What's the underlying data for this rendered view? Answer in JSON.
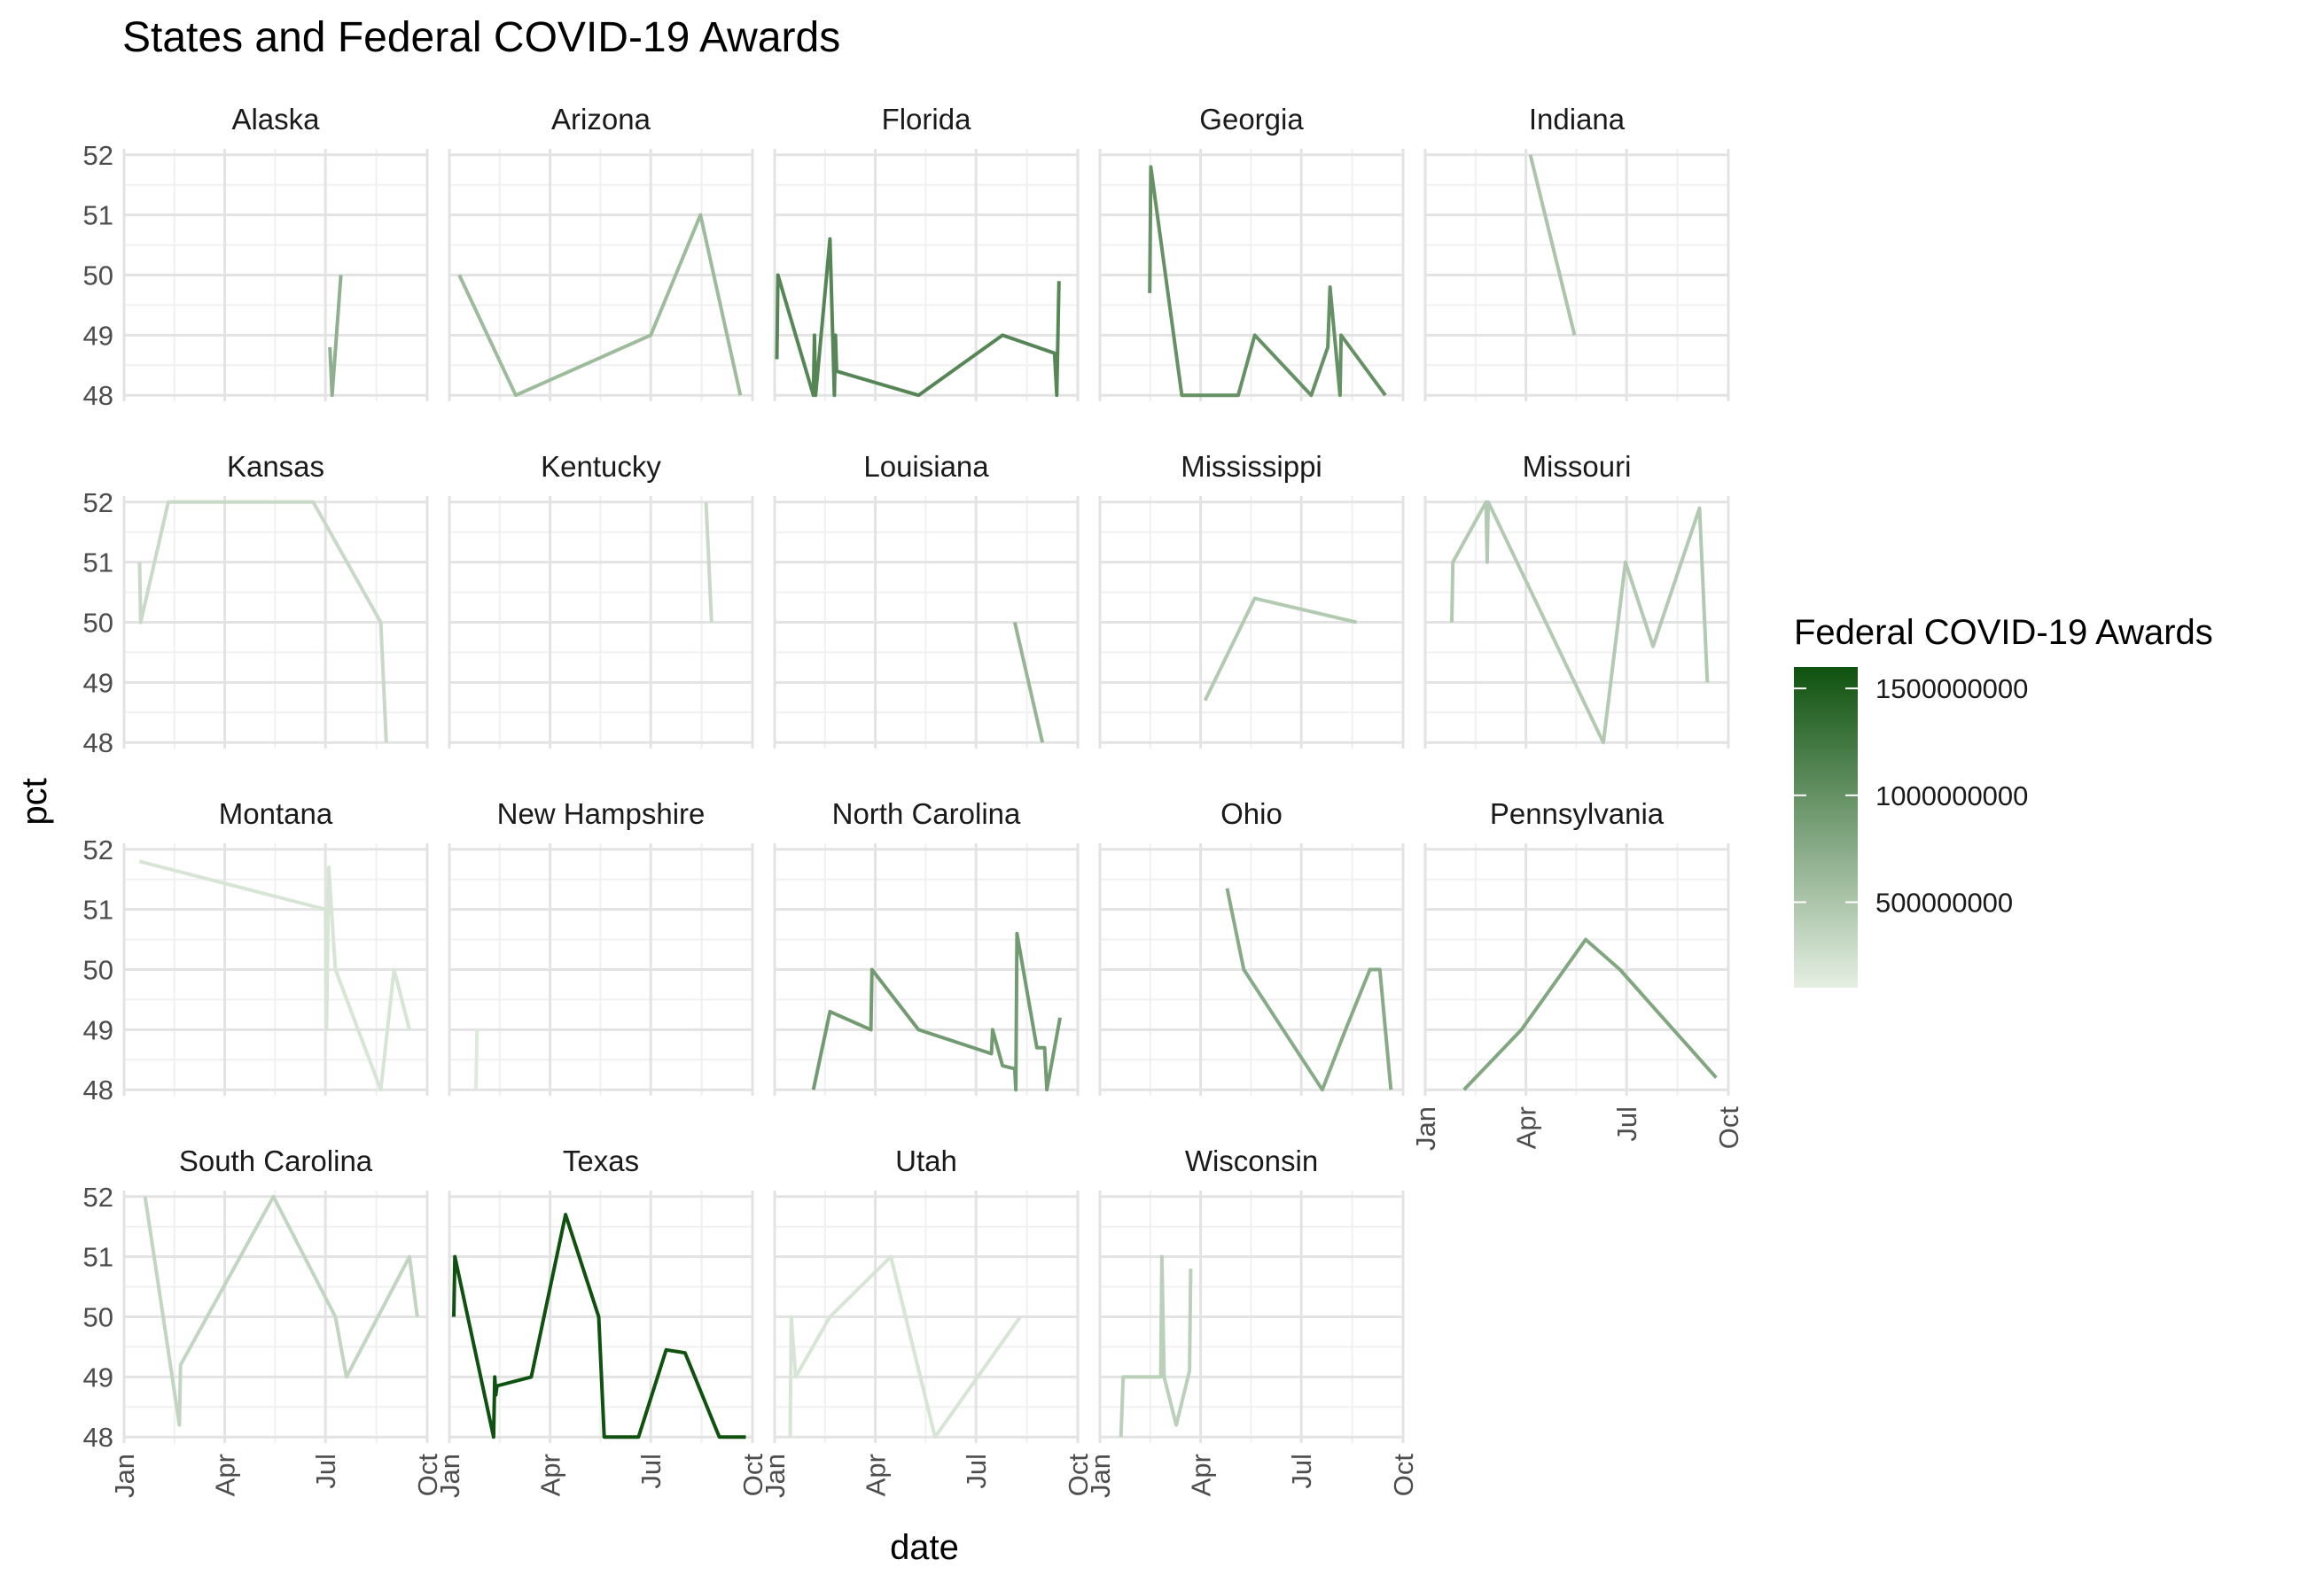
{
  "chart_data": {
    "type": "line",
    "title": "States and Federal COVID-19 Awards",
    "xlabel": "date",
    "ylabel": "pct",
    "x_ticks": [
      "Jan",
      "Apr",
      "Jul",
      "Oct"
    ],
    "x_tick_dates": [
      "2020-01-01",
      "2020-04-01",
      "2020-07-01",
      "2020-10-01"
    ],
    "xlim": [
      "2020-01-01",
      "2020-10-01"
    ],
    "y_ticks": [
      48,
      49,
      50,
      51,
      52
    ],
    "ylim": [
      47.9,
      52.1
    ],
    "grid": true,
    "facet_columns": 5,
    "legend": {
      "title": "Federal COVID-19 Awards",
      "position": "right",
      "type": "colorbar",
      "min": 100000000,
      "max": 1600000000,
      "breaks": [
        1500000000,
        1000000000,
        500000000
      ],
      "break_labels": [
        "1500000000",
        "1000000000",
        "500000000"
      ],
      "color_low": "#e5efe3",
      "color_high": "#0f520f"
    },
    "series": [
      {
        "name": "Alaska",
        "award": 700000000,
        "points": [
          [
            "2020-07-05",
            48.8
          ],
          [
            "2020-07-07",
            48.0
          ],
          [
            "2020-07-15",
            50.0
          ]
        ]
      },
      {
        "name": "Arizona",
        "award": 600000000,
        "points": [
          [
            "2020-01-10",
            50.0
          ],
          [
            "2020-03-01",
            48.0
          ],
          [
            "2020-07-01",
            49.0
          ],
          [
            "2020-08-15",
            51.0
          ],
          [
            "2020-09-20",
            48.0
          ]
        ]
      },
      {
        "name": "Florida",
        "award": 1100000000,
        "points": [
          [
            "2020-01-03",
            48.6
          ],
          [
            "2020-01-04",
            50.0
          ],
          [
            "2020-02-05",
            48.0
          ],
          [
            "2020-02-06",
            49.0
          ],
          [
            "2020-02-07",
            48.0
          ],
          [
            "2020-02-20",
            50.6
          ],
          [
            "2020-02-24",
            48.0
          ],
          [
            "2020-02-25",
            49.0
          ],
          [
            "2020-02-26",
            48.4
          ],
          [
            "2020-05-10",
            48.0
          ],
          [
            "2020-07-25",
            49.0
          ],
          [
            "2020-09-10",
            48.7
          ],
          [
            "2020-09-12",
            48.0
          ],
          [
            "2020-09-14",
            49.9
          ]
        ]
      },
      {
        "name": "Georgia",
        "award": 1000000000,
        "points": [
          [
            "2020-02-15",
            49.7
          ],
          [
            "2020-02-16",
            51.8
          ],
          [
            "2020-03-15",
            48.0
          ],
          [
            "2020-05-05",
            48.0
          ],
          [
            "2020-05-20",
            49.0
          ],
          [
            "2020-07-10",
            48.0
          ],
          [
            "2020-07-25",
            48.8
          ],
          [
            "2020-07-27",
            49.8
          ],
          [
            "2020-08-05",
            48.0
          ],
          [
            "2020-08-06",
            49.0
          ],
          [
            "2020-09-15",
            48.0
          ]
        ]
      },
      {
        "name": "Indiana",
        "award": 500000000,
        "points": [
          [
            "2020-04-05",
            52.0
          ],
          [
            "2020-05-15",
            49.0
          ]
        ]
      },
      {
        "name": "Kansas",
        "award": 300000000,
        "points": [
          [
            "2020-01-15",
            51.0
          ],
          [
            "2020-01-16",
            50.0
          ],
          [
            "2020-02-10",
            52.0
          ],
          [
            "2020-06-20",
            52.0
          ],
          [
            "2020-08-20",
            50.0
          ],
          [
            "2020-08-25",
            48.0
          ]
        ]
      },
      {
        "name": "Kentucky",
        "award": 300000000,
        "points": [
          [
            "2020-08-20",
            52.0
          ],
          [
            "2020-08-25",
            50.0
          ]
        ]
      },
      {
        "name": "Louisiana",
        "award": 650000000,
        "points": [
          [
            "2020-08-05",
            50.0
          ],
          [
            "2020-08-30",
            48.0
          ]
        ]
      },
      {
        "name": "Mississippi",
        "award": 450000000,
        "points": [
          [
            "2020-04-05",
            48.7
          ],
          [
            "2020-05-20",
            50.4
          ],
          [
            "2020-08-20",
            50.0
          ]
        ]
      },
      {
        "name": "Missouri",
        "award": 450000000,
        "points": [
          [
            "2020-01-25",
            50.0
          ],
          [
            "2020-01-26",
            51.0
          ],
          [
            "2020-02-25",
            52.0
          ],
          [
            "2020-02-26",
            51.0
          ],
          [
            "2020-02-27",
            52.0
          ],
          [
            "2020-06-10",
            48.0
          ],
          [
            "2020-06-30",
            51.0
          ],
          [
            "2020-07-25",
            49.6
          ],
          [
            "2020-09-05",
            51.9
          ],
          [
            "2020-09-12",
            49.0
          ]
        ]
      },
      {
        "name": "Montana",
        "award": 200000000,
        "points": [
          [
            "2020-01-15",
            51.8
          ],
          [
            "2020-07-01",
            51.0
          ],
          [
            "2020-07-02",
            49.0
          ],
          [
            "2020-07-04",
            51.7
          ],
          [
            "2020-07-10",
            50.0
          ],
          [
            "2020-08-20",
            48.0
          ],
          [
            "2020-09-01",
            50.0
          ],
          [
            "2020-09-15",
            49.0
          ]
        ]
      },
      {
        "name": "New Hampshire",
        "award": 150000000,
        "points": [
          [
            "2020-01-25",
            48.0
          ],
          [
            "2020-01-26",
            49.0
          ]
        ]
      },
      {
        "name": "North Carolina",
        "award": 900000000,
        "points": [
          [
            "2020-02-05",
            48.0
          ],
          [
            "2020-02-20",
            49.3
          ],
          [
            "2020-03-28",
            49.0
          ],
          [
            "2020-03-29",
            50.0
          ],
          [
            "2020-05-10",
            49.0
          ],
          [
            "2020-07-15",
            48.6
          ],
          [
            "2020-07-16",
            49.0
          ],
          [
            "2020-07-25",
            48.4
          ],
          [
            "2020-08-05",
            48.35
          ],
          [
            "2020-08-06",
            48.0
          ],
          [
            "2020-08-07",
            50.6
          ],
          [
            "2020-08-25",
            48.7
          ],
          [
            "2020-09-01",
            48.7
          ],
          [
            "2020-09-03",
            48.0
          ],
          [
            "2020-09-15",
            49.2
          ]
        ]
      },
      {
        "name": "Ohio",
        "award": 750000000,
        "points": [
          [
            "2020-04-25",
            51.35
          ],
          [
            "2020-05-10",
            50.0
          ],
          [
            "2020-07-20",
            48.0
          ],
          [
            "2020-08-10",
            49.0
          ],
          [
            "2020-09-01",
            50.0
          ],
          [
            "2020-09-10",
            50.0
          ],
          [
            "2020-09-20",
            48.0
          ]
        ]
      },
      {
        "name": "Pennsylvania",
        "award": 800000000,
        "points": [
          [
            "2020-02-05",
            48.0
          ],
          [
            "2020-03-28",
            49.0
          ],
          [
            "2020-05-25",
            50.5
          ],
          [
            "2020-06-25",
            50.0
          ],
          [
            "2020-09-20",
            48.2
          ]
        ]
      },
      {
        "name": "South Carolina",
        "award": 350000000,
        "points": [
          [
            "2020-01-20",
            52.0
          ],
          [
            "2020-02-20",
            48.2
          ],
          [
            "2020-02-21",
            49.2
          ],
          [
            "2020-05-15",
            52.0
          ],
          [
            "2020-07-10",
            50.0
          ],
          [
            "2020-07-20",
            49.0
          ],
          [
            "2020-09-15",
            51.0
          ],
          [
            "2020-09-22",
            50.0
          ]
        ]
      },
      {
        "name": "Texas",
        "award": 1600000000,
        "points": [
          [
            "2020-01-05",
            50.0
          ],
          [
            "2020-01-06",
            51.0
          ],
          [
            "2020-02-10",
            48.0
          ],
          [
            "2020-02-11",
            49.0
          ],
          [
            "2020-02-12",
            48.7
          ],
          [
            "2020-02-13",
            48.85
          ],
          [
            "2020-03-15",
            49.0
          ],
          [
            "2020-04-15",
            51.7
          ],
          [
            "2020-05-15",
            50.0
          ],
          [
            "2020-05-20",
            48.0
          ],
          [
            "2020-06-20",
            48.0
          ],
          [
            "2020-07-15",
            49.45
          ],
          [
            "2020-08-01",
            49.4
          ],
          [
            "2020-09-01",
            48.0
          ],
          [
            "2020-09-25",
            48.0
          ]
        ]
      },
      {
        "name": "Utah",
        "award": 200000000,
        "points": [
          [
            "2020-01-15",
            48.0
          ],
          [
            "2020-01-16",
            50.0
          ],
          [
            "2020-01-20",
            49.0
          ],
          [
            "2020-02-20",
            50.0
          ],
          [
            "2020-04-15",
            51.0
          ],
          [
            "2020-05-25",
            48.0
          ],
          [
            "2020-08-10",
            50.0
          ]
        ]
      },
      {
        "name": "Wisconsin",
        "award": 400000000,
        "points": [
          [
            "2020-01-20",
            48.0
          ],
          [
            "2020-01-22",
            49.0
          ],
          [
            "2020-02-25",
            49.0
          ],
          [
            "2020-02-26",
            51.0
          ],
          [
            "2020-02-28",
            49.0
          ],
          [
            "2020-03-10",
            48.2
          ],
          [
            "2020-03-22",
            49.1
          ],
          [
            "2020-03-23",
            50.8
          ]
        ]
      }
    ]
  }
}
